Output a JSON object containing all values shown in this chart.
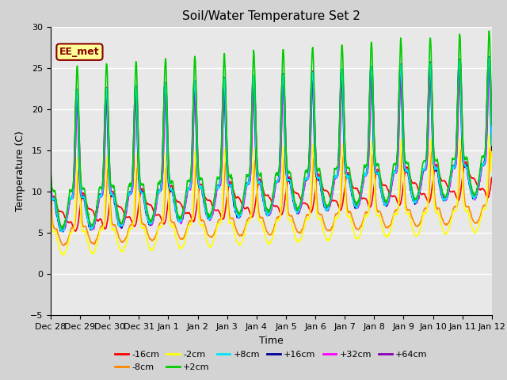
{
  "title": "Soil/Water Temperature Set 2",
  "xlabel": "Time",
  "ylabel": "Temperature (C)",
  "ylim": [
    -5,
    30
  ],
  "annotation_text": "EE_met",
  "background_color": "#d3d3d3",
  "plot_bg_color": "#e8e8e8",
  "series": [
    {
      "label": "-16cm",
      "color": "#ff0000",
      "lw": 1.2
    },
    {
      "label": "-8cm",
      "color": "#ff8800",
      "lw": 1.2
    },
    {
      "label": "-2cm",
      "color": "#ffff00",
      "lw": 1.2
    },
    {
      "label": "+2cm",
      "color": "#00cc00",
      "lw": 1.2
    },
    {
      "label": "+8cm",
      "color": "#00e5ff",
      "lw": 1.2
    },
    {
      "label": "+16cm",
      "color": "#000099",
      "lw": 1.2
    },
    {
      "label": "+32cm",
      "color": "#ff00ff",
      "lw": 1.2
    },
    {
      "label": "+64cm",
      "color": "#8800bb",
      "lw": 1.2
    }
  ],
  "xtick_labels": [
    "Dec 28",
    "Dec 29",
    "Dec 30",
    "Dec 31",
    "Jan 1",
    "Jan 2",
    "Jan 3",
    "Jan 4",
    "Jan 5",
    "Jan 6",
    "Jan 7",
    "Jan 8",
    "Jan 9",
    "Jan 10",
    "Jan 11",
    "Jan 12"
  ],
  "yticks": [
    -5,
    0,
    5,
    10,
    15,
    20,
    25,
    30
  ],
  "n_points": 1440,
  "period": 96,
  "spike_sharpness": 8
}
